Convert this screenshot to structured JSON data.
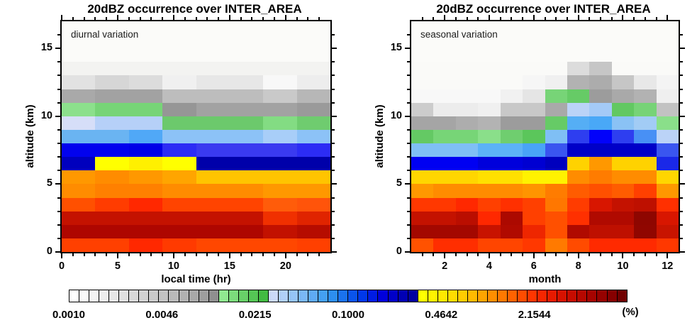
{
  "figure": {
    "background": "#FFFFFF",
    "frame_color": "#000000"
  },
  "chart_data": {
    "type": "heatmap",
    "description": "Two time-height heatmaps of 20dBZ radar echo occurrence frequency (%) with a shared discrete logarithmic colorbar",
    "colorbar": {
      "labels": [
        "0.0010",
        "0.0046",
        "0.0215",
        "0.1000",
        "0.4642",
        "2.1544"
      ],
      "unit": "(%)",
      "scale": "log10, factor 4.6416 per labeled step, range 0.0010 to 10",
      "colors": [
        "#FFFFFF",
        "#F9F9F9",
        "#F3F3F3",
        "#EDEDED",
        "#E7E7E7",
        "#E0E0E0",
        "#D9D9D9",
        "#D2D2D2",
        "#CACACA",
        "#C2C2C2",
        "#BABABA",
        "#B1B1B1",
        "#A8A8A8",
        "#9E9E9E",
        "#8F8F8F",
        "#90E890",
        "#7CDC7C",
        "#68D068",
        "#55C655",
        "#42BA42",
        "#CBD9F8",
        "#B0CFF8",
        "#95C4F7",
        "#7AB7F6",
        "#5FAAF4",
        "#44A0F2",
        "#2D8EF0",
        "#1A72EE",
        "#0A54EC",
        "#0038EA",
        "#001CE4",
        "#0000DC",
        "#0000C8",
        "#0000B4",
        "#0000A0",
        "#FFFF00",
        "#FFF400",
        "#FFE800",
        "#FFDC00",
        "#FFCC00",
        "#FFBA00",
        "#FFA400",
        "#FF8E00",
        "#FF7800",
        "#FF6200",
        "#FF4C00",
        "#FF3600",
        "#F62600",
        "#E61A00",
        "#D61200",
        "#C60C00",
        "#B60800",
        "#A60400",
        "#960200",
        "#860000",
        "#700000"
      ]
    },
    "panels": [
      {
        "id": "diurnal",
        "title": "20dBZ occurrence over INTER_AREA",
        "annotation": "diurnal variation",
        "x_axis": {
          "title": "local time (hr)",
          "min": 0,
          "max": 24,
          "major_ticks": [
            0,
            5,
            10,
            15,
            20
          ],
          "minor_step": 1
        },
        "y_axis": {
          "title": "altitude (km)",
          "min": 0,
          "max": 17,
          "major_ticks": [
            0,
            5,
            10,
            15
          ],
          "minor_step": 1
        },
        "x_bins": [
          "0-3h",
          "3-6h",
          "6-9h",
          "9-12h",
          "12-15h",
          "15-18h",
          "18-21h",
          "21-24h"
        ],
        "rows_top_to_bottom": "1-km altitude bins from 16-17 km (top) down to 0-1 km (bottom)",
        "grid": [
          [
            "#FBFBF9",
            "#FBFBF9",
            "#FBFBF9",
            "#FBFBF9",
            "#FBFBF9",
            "#FBFBF9",
            "#FBFBF9",
            "#FBFBF9"
          ],
          [
            "#FBFBF9",
            "#FBFBF9",
            "#FBFBF9",
            "#FBFBF9",
            "#FBFBF9",
            "#FBFBF9",
            "#FBFBF9",
            "#FBFBF9"
          ],
          [
            "#FBFBF9",
            "#FBFBF9",
            "#FBFBF9",
            "#FBFBF9",
            "#FBFBF9",
            "#FBFBF9",
            "#FBFBF9",
            "#FBFBF9"
          ],
          [
            "#F3F3F1",
            "#F3F3F1",
            "#F3F3F1",
            "#F3F3F1",
            "#F3F3F1",
            "#F3F3F1",
            "#F3F3F1",
            "#F3F3F1"
          ],
          [
            "#E2E2E2",
            "#D6D6D6",
            "#DCDCDC",
            "#F0F0F0",
            "#E7E7E7",
            "#E7E7E7",
            "#F8F8F8",
            "#EDEDED"
          ],
          [
            "#A9A9A9",
            "#A2A2A2",
            "#A2A2A2",
            "#BDBDBD",
            "#BDBDBD",
            "#BDBDBD",
            "#C9C9C9",
            "#B7B7B7"
          ],
          [
            "#8CE08C",
            "#77D477",
            "#77D477",
            "#969696",
            "#A2A2A2",
            "#A2A2A2",
            "#A2A2A2",
            "#9A9A9A"
          ],
          [
            "#D6DEF8",
            "#B6D0F8",
            "#B6D0F8",
            "#6CC96C",
            "#6CC96C",
            "#6CC96C",
            "#83DC83",
            "#6FCC6F"
          ],
          [
            "#6AB4F2",
            "#6AB4F2",
            "#50A8F7",
            "#8CC2F7",
            "#8CC2F7",
            "#8CC2F7",
            "#A8CEF8",
            "#8CC2F7"
          ],
          [
            "#0202EE",
            "#0202EE",
            "#0000E8",
            "#2C2CF5",
            "#3A3AF0",
            "#3A3AF0",
            "#3A3AF0",
            "#2C2CF5"
          ],
          [
            "#0000BE",
            "#FFFF00",
            "#FFF000",
            "#FFFF00",
            "#0000AA",
            "#0000AA",
            "#0000AA",
            "#0000AA"
          ],
          [
            "#FF9800",
            "#FF8C00",
            "#FF9800",
            "#FFA500",
            "#FFC400",
            "#FFC400",
            "#FFC400",
            "#FFC400"
          ],
          [
            "#FF8C00",
            "#FF8000",
            "#FF8000",
            "#FF8C00",
            "#FF8C00",
            "#FF8C00",
            "#FF9800",
            "#FF9800"
          ],
          [
            "#FF5000",
            "#FF3C00",
            "#FF2800",
            "#FF4400",
            "#FF4400",
            "#FF4400",
            "#FF5C0A",
            "#FF540A"
          ],
          [
            "#C41200",
            "#C41200",
            "#C41200",
            "#C41200",
            "#C41200",
            "#C41200",
            "#F03000",
            "#E02400"
          ],
          [
            "#AE0600",
            "#AE0600",
            "#AE0600",
            "#AE0600",
            "#AE0600",
            "#AE0600",
            "#C21100",
            "#B60C00"
          ],
          [
            "#FF4000",
            "#FF4000",
            "#FF2800",
            "#FF3A00",
            "#FF4700",
            "#FF4700",
            "#FF4700",
            "#FF4000"
          ]
        ]
      },
      {
        "id": "seasonal",
        "title": "20dBZ occurrence over INTER_AREA",
        "annotation": "seasonal variation",
        "x_axis": {
          "title": "month",
          "min": 0.5,
          "max": 12.5,
          "major_ticks": [
            2,
            4,
            6,
            8,
            10,
            12
          ],
          "minor_step": 0.5
        },
        "y_axis": {
          "title": "altitude (km)",
          "min": 0,
          "max": 17,
          "major_ticks": [
            0,
            5,
            10,
            15
          ],
          "minor_step": 1
        },
        "x_bins": [
          "Jan",
          "Feb",
          "Mar",
          "Apr",
          "May",
          "Jun",
          "Jul",
          "Aug",
          "Sep",
          "Oct",
          "Nov",
          "Dec"
        ],
        "rows_top_to_bottom": "1-km altitude bins from 16-17 km (top) down to 0-1 km (bottom)",
        "grid": [
          [
            "#FBFBF9",
            "#FBFBF9",
            "#FBFBF9",
            "#FBFBF9",
            "#FBFBF9",
            "#FBFBF9",
            "#FBFBF9",
            "#FBFBF9",
            "#FBFBF9",
            "#FBFBF9",
            "#FBFBF9",
            "#FBFBF9"
          ],
          [
            "#FBFBF9",
            "#FBFBF9",
            "#FBFBF9",
            "#FBFBF9",
            "#FBFBF9",
            "#FBFBF9",
            "#FBFBF9",
            "#FBFBF9",
            "#FBFBF9",
            "#FBFBF9",
            "#FBFBF9",
            "#FBFBF9"
          ],
          [
            "#FBFBF9",
            "#FBFBF9",
            "#FBFBF9",
            "#FBFBF9",
            "#FBFBF9",
            "#FBFBF9",
            "#FBFBF9",
            "#FBFBF9",
            "#FBFBF9",
            "#FBFBF9",
            "#FBFBF9",
            "#FBFBF9"
          ],
          [
            "#FAFAF8",
            "#FAFAF8",
            "#FAFAF8",
            "#FAFAF8",
            "#FAFAF8",
            "#FAFAF8",
            "#FAFAF8",
            "#DCDCDC",
            "#C6C6C6",
            "#FAFAF8",
            "#FAFAF8",
            "#FAFAF8"
          ],
          [
            "#FAFAF8",
            "#FAFAF8",
            "#FAFAF8",
            "#FAFAF8",
            "#FAFAF8",
            "#F6F6F6",
            "#F0F0F0",
            "#B2B2B2",
            "#ACACAC",
            "#C6C6C6",
            "#E8E8E8",
            "#F4F4F4"
          ],
          [
            "#F8F8F8",
            "#F8F8F8",
            "#F8F8F8",
            "#F8F8F8",
            "#F1F1F1",
            "#E5E5E5",
            "#77D477",
            "#66CB66",
            "#9C9C9C",
            "#A9A9A9",
            "#B2B2B2",
            "#EFEFEF"
          ],
          [
            "#CCCCCC",
            "#ECECEC",
            "#ECECEC",
            "#F0F0F0",
            "#C8C8C8",
            "#C8C8C8",
            "#A9A9A9",
            "#BBD3F7",
            "#A4CAF7",
            "#62C862",
            "#77D377",
            "#C2C2C2"
          ],
          [
            "#A5A5A5",
            "#A5A5A5",
            "#ADADAD",
            "#B3B3B3",
            "#9C9C9C",
            "#9C9C9C",
            "#66CB66",
            "#55AEF5",
            "#49A8F7",
            "#8AC2F5",
            "#A2CCF5",
            "#8ADF8A"
          ],
          [
            "#64C964",
            "#77D577",
            "#77D577",
            "#8ADF8A",
            "#6FCE6F",
            "#5BC65B",
            "#7FBFF5",
            "#2E3EF0",
            "#0202FA",
            "#2E3EF0",
            "#4890F5",
            "#BBD3F7"
          ],
          [
            "#7FBFF5",
            "#7FBFF5",
            "#7FBFF5",
            "#5CB2F7",
            "#5CB2F7",
            "#49A4F7",
            "#3A55F0",
            "#0000C8",
            "#0000C8",
            "#0000C8",
            "#0000C8",
            "#3A55F0"
          ],
          [
            "#0000F2",
            "#0000F2",
            "#0000F2",
            "#0000DC",
            "#0000DC",
            "#0000D2",
            "#0000BE",
            "#FFD200",
            "#FF9800",
            "#FFD200",
            "#FFD200",
            "#1A28E8"
          ],
          [
            "#FFD600",
            "#FFD600",
            "#FFD600",
            "#FFE000",
            "#FFE000",
            "#FFF200",
            "#FFF200",
            "#FF8C00",
            "#FF7C00",
            "#FF8C00",
            "#FF8C00",
            "#FFD600"
          ],
          [
            "#FF9800",
            "#FF8C00",
            "#FF8C00",
            "#FF8C00",
            "#FF8C00",
            "#FF9400",
            "#FF7C00",
            "#FF5C00",
            "#FF5000",
            "#FF5C00",
            "#FF4000",
            "#FF9800"
          ],
          [
            "#FF3800",
            "#FF3800",
            "#FF2800",
            "#FF4000",
            "#FF3000",
            "#FF4000",
            "#FF7700",
            "#FF3C00",
            "#D81600",
            "#C41200",
            "#BE1000",
            "#FF3000"
          ],
          [
            "#C41200",
            "#C41200",
            "#BA0E00",
            "#FF2800",
            "#AC0900",
            "#FF4000",
            "#FF5000",
            "#FF3000",
            "#B00A00",
            "#B00A00",
            "#8E0600",
            "#D81600"
          ],
          [
            "#A30800",
            "#A30800",
            "#A30800",
            "#C81300",
            "#B00A00",
            "#EE2600",
            "#FF5000",
            "#B00A00",
            "#BE1000",
            "#BE1000",
            "#900600",
            "#C81400"
          ],
          [
            "#FF5200",
            "#FF2E00",
            "#FF2E00",
            "#FF4500",
            "#FF4500",
            "#FF3800",
            "#FF7A00",
            "#FF4B00",
            "#FF2A00",
            "#FF2A00",
            "#FF2A00",
            "#FF3800"
          ]
        ]
      }
    ]
  }
}
